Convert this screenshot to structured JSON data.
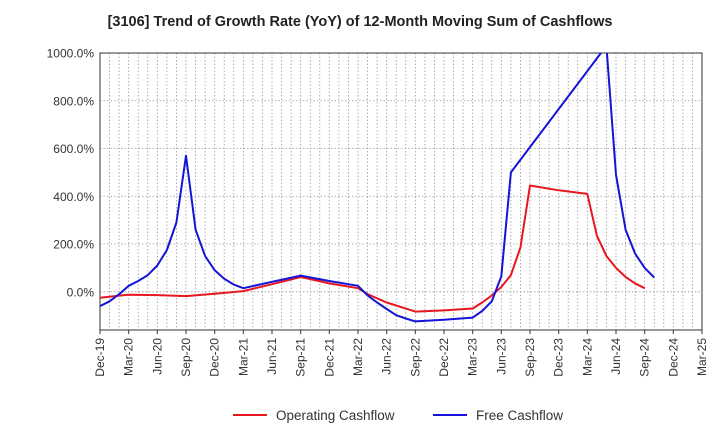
{
  "chart_data": {
    "type": "line",
    "title": "[3106]  Trend of Growth Rate (YoY) of 12-Month Moving Sum of Cashflows",
    "xlabel": "",
    "ylabel": "",
    "x_start": "Dec-19",
    "x_tick_labels": [
      "Dec-19",
      "Mar-20",
      "Jun-20",
      "Sep-20",
      "Dec-20",
      "Mar-21",
      "Jun-21",
      "Sep-21",
      "Dec-21",
      "Mar-22",
      "Jun-22",
      "Sep-22",
      "Dec-22",
      "Mar-23",
      "Jun-23",
      "Sep-23",
      "Dec-23",
      "Mar-24",
      "Jun-24",
      "Sep-24",
      "Dec-24",
      "Mar-25"
    ],
    "y_tick_labels": [
      "1000.0%",
      "800.0%",
      "600.0%",
      "400.0%",
      "200.0%",
      "0.0%"
    ],
    "y_ticks": [
      1000,
      800,
      600,
      400,
      200,
      0
    ],
    "ylim": [
      -160,
      1000
    ],
    "grid": true,
    "legend_position": "bottom",
    "series": [
      {
        "name": "Operating Cashflow",
        "color": "#e8171f",
        "points": [
          {
            "x": "Dec-19",
            "y": -25
          },
          {
            "x": "Mar-20",
            "y": -12
          },
          {
            "x": "Jun-20",
            "y": -14
          },
          {
            "x": "Sep-20",
            "y": -18
          },
          {
            "x": "Dec-20",
            "y": -8
          },
          {
            "x": "Mar-21",
            "y": 3
          },
          {
            "x": "Jun-21",
            "y": 32
          },
          {
            "x": "Sep-21",
            "y": 62
          },
          {
            "x": "Dec-21",
            "y": 35
          },
          {
            "x": "Mar-22",
            "y": 15
          },
          {
            "x": "Apr-22",
            "y": -10
          },
          {
            "x": "Jun-22",
            "y": -45
          },
          {
            "x": "Sep-22",
            "y": -83
          },
          {
            "x": "Dec-22",
            "y": -78
          },
          {
            "x": "Mar-23",
            "y": -70
          },
          {
            "x": "Apr-23",
            "y": -45
          },
          {
            "x": "May-23",
            "y": -15
          },
          {
            "x": "Jun-23",
            "y": 20
          },
          {
            "x": "Jul-23",
            "y": 70
          },
          {
            "x": "Aug-23",
            "y": 185
          },
          {
            "x": "Sep-23",
            "y": 445
          },
          {
            "x": "Dec-23",
            "y": 425
          },
          {
            "x": "Mar-24",
            "y": 410
          },
          {
            "x": "Apr-24",
            "y": 235
          },
          {
            "x": "May-24",
            "y": 150
          },
          {
            "x": "Jun-24",
            "y": 100
          },
          {
            "x": "Jul-24",
            "y": 62
          },
          {
            "x": "Aug-24",
            "y": 35
          },
          {
            "x": "Sep-24",
            "y": 15
          }
        ]
      },
      {
        "name": "Free Cashflow",
        "color": "#1414d8",
        "points": [
          {
            "x": "Dec-19",
            "y": -60
          },
          {
            "x": "Jan-20",
            "y": -40
          },
          {
            "x": "Feb-20",
            "y": -10
          },
          {
            "x": "Mar-20",
            "y": 25
          },
          {
            "x": "Apr-20",
            "y": 45
          },
          {
            "x": "May-20",
            "y": 70
          },
          {
            "x": "Jun-20",
            "y": 110
          },
          {
            "x": "Jul-20",
            "y": 175
          },
          {
            "x": "Aug-20",
            "y": 290
          },
          {
            "x": "Sep-20",
            "y": 570
          },
          {
            "x": "Oct-20",
            "y": 260
          },
          {
            "x": "Nov-20",
            "y": 150
          },
          {
            "x": "Dec-20",
            "y": 90
          },
          {
            "x": "Jan-21",
            "y": 55
          },
          {
            "x": "Feb-21",
            "y": 30
          },
          {
            "x": "Mar-21",
            "y": 15
          },
          {
            "x": "Jun-21",
            "y": 42
          },
          {
            "x": "Sep-21",
            "y": 68
          },
          {
            "x": "Dec-21",
            "y": 45
          },
          {
            "x": "Mar-22",
            "y": 25
          },
          {
            "x": "Apr-22",
            "y": -15
          },
          {
            "x": "May-22",
            "y": -45
          },
          {
            "x": "Jun-22",
            "y": -72
          },
          {
            "x": "Jul-22",
            "y": -98
          },
          {
            "x": "Aug-22",
            "y": -112
          },
          {
            "x": "Sep-22",
            "y": -124
          },
          {
            "x": "Dec-22",
            "y": -117
          },
          {
            "x": "Mar-23",
            "y": -108
          },
          {
            "x": "Apr-23",
            "y": -80
          },
          {
            "x": "May-23",
            "y": -40
          },
          {
            "x": "Jun-23",
            "y": 65
          },
          {
            "x": "Jul-23",
            "y": 500
          },
          {
            "x": "May-24",
            "y": 1030
          },
          {
            "x": "Jun-24",
            "y": 490
          },
          {
            "x": "Jul-24",
            "y": 260
          },
          {
            "x": "Aug-24",
            "y": 160
          },
          {
            "x": "Sep-24",
            "y": 100
          },
          {
            "x": "Oct-24",
            "y": 60
          }
        ]
      }
    ]
  }
}
